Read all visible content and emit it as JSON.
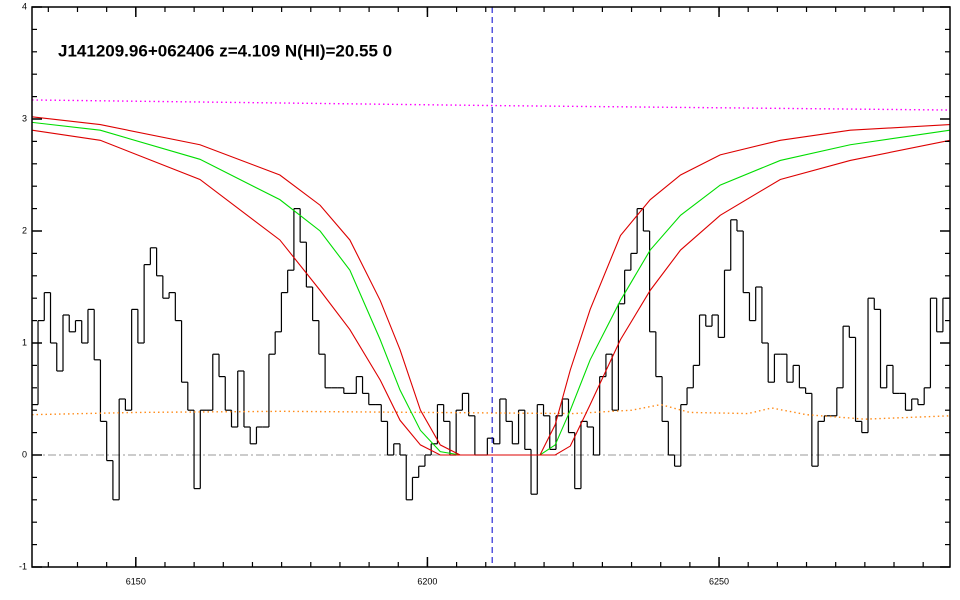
{
  "chart_data": {
    "type": "line",
    "title": "J141209.96+062406 z=4.109 N(HI)=20.55 0",
    "xlim": [
      6132.2,
      6289.6
    ],
    "ylim": [
      -1,
      4
    ],
    "xticks": [
      6150,
      6200,
      6250
    ],
    "yticks": [
      -1,
      0,
      1,
      2,
      3,
      4
    ],
    "vline": {
      "value": 6211.1,
      "color": "#0000cc",
      "linestyle": "dashed"
    },
    "hline": {
      "value": 0,
      "color": "#999999",
      "linestyle": "dashdot"
    },
    "series": [
      {
        "color": "#000000",
        "linestyle": "step",
        "x": [
          6132.7,
          6133.77,
          6134.84,
          6135.91,
          6136.98,
          6138.05,
          6139.12,
          6140.19,
          6141.26,
          6142.33,
          6143.4,
          6144.47,
          6145.54,
          6146.61,
          6147.68,
          6148.75,
          6149.82,
          6150.89,
          6151.96,
          6153.03,
          6154.1,
          6155.17,
          6156.24,
          6157.31,
          6158.38,
          6159.45,
          6160.52,
          6161.59,
          6162.66,
          6163.73,
          6164.8,
          6165.87,
          6166.94,
          6168.01,
          6169.08,
          6170.15,
          6171.22,
          6172.29,
          6173.36,
          6174.43,
          6175.5,
          6176.57,
          6177.64,
          6178.71,
          6179.78,
          6180.85,
          6181.92,
          6182.99,
          6184.06,
          6185.13,
          6186.2,
          6187.27,
          6188.34,
          6189.41,
          6190.48,
          6191.55,
          6192.62,
          6193.69,
          6194.76,
          6195.83,
          6196.9,
          6197.97,
          6199.04,
          6200.11,
          6201.18,
          6202.25,
          6203.32,
          6204.39,
          6205.46,
          6206.53,
          6207.6,
          6208.67,
          6209.74,
          6210.81,
          6211.88,
          6212.95,
          6214.02,
          6215.09,
          6216.16,
          6217.23,
          6218.3,
          6219.37,
          6220.44,
          6221.51,
          6222.58,
          6223.65,
          6224.72,
          6225.79,
          6226.86,
          6227.93,
          6229.0,
          6230.07,
          6231.14,
          6232.21,
          6233.28,
          6234.35,
          6235.42,
          6236.49,
          6237.56,
          6238.63,
          6239.7,
          6240.77,
          6241.84,
          6242.91,
          6243.98,
          6245.05,
          6246.12,
          6247.19,
          6248.26,
          6249.33,
          6250.4,
          6251.47,
          6252.54,
          6253.61,
          6254.68,
          6255.75,
          6256.82,
          6257.89,
          6258.96,
          6260.03,
          6261.1,
          6262.17,
          6263.24,
          6264.31,
          6265.38,
          6266.45,
          6267.52,
          6268.59,
          6269.66,
          6270.73,
          6271.8,
          6272.87,
          6273.94,
          6275.01,
          6276.08,
          6277.15,
          6278.22,
          6279.29,
          6280.36,
          6281.43,
          6282.5,
          6283.57,
          6284.64,
          6285.71,
          6286.78,
          6287.85,
          6288.92
        ],
        "values": [
          0.45,
          1.2,
          1.45,
          1.0,
          0.75,
          1.25,
          1.1,
          1.2,
          1.0,
          1.3,
          0.85,
          0.3,
          -0.05,
          -0.4,
          0.5,
          0.4,
          1.3,
          1.0,
          1.7,
          1.85,
          1.6,
          1.4,
          1.45,
          1.2,
          0.65,
          0.4,
          -0.3,
          0.4,
          0.4,
          0.9,
          0.7,
          0.4,
          0.25,
          0.75,
          0.25,
          0.1,
          0.25,
          0.25,
          0.9,
          1.1,
          1.45,
          1.65,
          2.2,
          1.9,
          1.5,
          1.2,
          0.9,
          0.6,
          0.6,
          0.6,
          0.55,
          0.55,
          0.7,
          0.55,
          0.45,
          0.45,
          0.3,
          0,
          0.1,
          0,
          -0.4,
          -0.2,
          -0.1,
          0,
          0.1,
          0.45,
          0.3,
          0,
          0.4,
          0.55,
          0.35,
          0,
          0,
          0.15,
          0.1,
          0.5,
          0.3,
          0.1,
          0.4,
          0.05,
          -0.35,
          0.45,
          0.35,
          0.05,
          0.35,
          0.5,
          0.2,
          -0.3,
          0.3,
          0.25,
          0,
          0.7,
          0.9,
          0.4,
          1.35,
          1.65,
          1.8,
          2.2,
          2.0,
          1.1,
          0.7,
          0.3,
          0,
          -0.1,
          0.45,
          0.6,
          0.8,
          1.25,
          1.15,
          1.25,
          1.05,
          1.65,
          2.1,
          2.0,
          1.45,
          1.2,
          1.5,
          1.0,
          0.65,
          0.9,
          0.9,
          0.65,
          0.8,
          0.6,
          0.55,
          -0.1,
          0.3,
          0.35,
          0.35,
          0.6,
          1.15,
          1.05,
          0.3,
          0.2,
          1.4,
          1.3,
          0.6,
          0.8,
          0.55,
          0.55,
          0.4,
          0.5,
          0.45,
          0.6,
          1.4,
          1.1,
          1.4
        ]
      },
      {
        "color": "#ff00ff",
        "linestyle": "dotted",
        "x": [
          6132.2,
          6211.1,
          6289.6
        ],
        "values": [
          3.17,
          3.12,
          3.08
        ]
      },
      {
        "color": "#ff8c1a",
        "linestyle": "dotted",
        "x": [
          6132.2,
          6150,
          6175,
          6200,
          6225,
          6235,
          6240,
          6245,
          6255,
          6259,
          6265,
          6275,
          6289.6
        ],
        "values": [
          0.36,
          0.38,
          0.39,
          0.38,
          0.37,
          0.4,
          0.45,
          0.38,
          0.37,
          0.42,
          0.36,
          0.32,
          0.35
        ]
      },
      {
        "color": "#00dd00",
        "linestyle": "solid",
        "x": [
          6132.2,
          6143.9,
          6161.0,
          6174.7,
          6181.6,
          6186.7,
          6191.9,
          6195.3,
          6198.8,
          6202.2,
          6205.6,
          6219.3,
          6221.9,
          6224.5,
          6227.9,
          6233.1,
          6238.2,
          6243.4,
          6250.2,
          6260.5,
          6272.5,
          6289.6
        ],
        "values": [
          2.97,
          2.9,
          2.64,
          2.28,
          2.0,
          1.65,
          1.03,
          0.58,
          0.22,
          0.03,
          0,
          0,
          0.09,
          0.4,
          0.85,
          1.38,
          1.83,
          2.14,
          2.41,
          2.63,
          2.77,
          2.9
        ]
      },
      {
        "color": "#dd0000",
        "linestyle": "solid",
        "x": [
          6132.2,
          6143.9,
          6161.0,
          6174.7,
          6181.6,
          6186.7,
          6191.9,
          6195.3,
          6198.8,
          6202.2,
          6205.6,
          6219.3,
          6221.9,
          6224.5,
          6227.9,
          6233.1,
          6238.2,
          6243.4,
          6250.2,
          6260.5,
          6272.5,
          6289.6
        ],
        "values": [
          3.02,
          2.95,
          2.77,
          2.5,
          2.23,
          1.92,
          1.38,
          0.94,
          0.4,
          0.09,
          0,
          0,
          0.27,
          0.76,
          1.3,
          1.96,
          2.28,
          2.5,
          2.68,
          2.81,
          2.9,
          2.95
        ]
      },
      {
        "color": "#dd0000",
        "linestyle": "solid",
        "x": [
          6132.2,
          6143.9,
          6161.0,
          6174.7,
          6181.6,
          6186.7,
          6191.9,
          6195.3,
          6198.8,
          6202.2,
          6205.6,
          6219.3,
          6221.9,
          6224.5,
          6227.9,
          6233.1,
          6238.2,
          6243.4,
          6250.2,
          6260.5,
          6272.5,
          6289.6
        ],
        "values": [
          2.9,
          2.81,
          2.46,
          1.92,
          1.47,
          1.12,
          0.67,
          0.31,
          0.09,
          0,
          0,
          0,
          0,
          0.08,
          0.45,
          1.03,
          1.47,
          1.83,
          2.14,
          2.46,
          2.63,
          2.81
        ]
      }
    ]
  }
}
